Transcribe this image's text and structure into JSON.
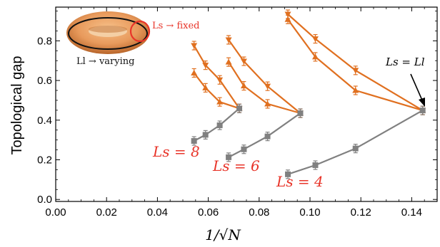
{
  "chart_data": {
    "type": "line",
    "xlabel": "1/√N",
    "ylabel": "Topological gap",
    "xlim": [
      0.0,
      0.15
    ],
    "ylim": [
      -0.01,
      0.97
    ],
    "xticks": [
      "0.00",
      "0.02",
      "0.04",
      "0.06",
      "0.08",
      "0.10",
      "0.12",
      "0.14"
    ],
    "yticks": [
      "0.0",
      "0.2",
      "0.4",
      "0.6",
      "0.8"
    ],
    "colors": {
      "orange": "#e07020",
      "gray": "#808080",
      "red": "#e8352a"
    },
    "series": [
      {
        "color": "orange",
        "marker": "down-triangle",
        "x": [
          0.0544,
          0.0589,
          0.0645,
          0.0722
        ],
        "y": [
          0.776,
          0.677,
          0.603,
          0.459
        ]
      },
      {
        "color": "orange",
        "marker": "up-triangle",
        "x": [
          0.0544,
          0.0589,
          0.0645,
          0.0722
        ],
        "y": [
          0.638,
          0.563,
          0.492,
          0.459
        ]
      },
      {
        "color": "gray",
        "marker": "square",
        "x": [
          0.0544,
          0.0589,
          0.0645,
          0.0722
        ],
        "y": [
          0.295,
          0.326,
          0.374,
          0.459
        ]
      },
      {
        "color": "orange",
        "marker": "down-triangle",
        "x": [
          0.068,
          0.074,
          0.0833,
          0.0962
        ],
        "y": [
          0.805,
          0.697,
          0.571,
          0.435
        ]
      },
      {
        "color": "orange",
        "marker": "up-triangle",
        "x": [
          0.068,
          0.074,
          0.0833,
          0.0962
        ],
        "y": [
          0.693,
          0.573,
          0.482,
          0.435
        ]
      },
      {
        "color": "gray",
        "marker": "square",
        "x": [
          0.068,
          0.074,
          0.0833,
          0.0962
        ],
        "y": [
          0.213,
          0.253,
          0.318,
          0.435
        ]
      },
      {
        "color": "orange",
        "marker": "down-triangle",
        "x": [
          0.0913,
          0.1021,
          0.1179,
          0.1443
        ],
        "y": [
          0.934,
          0.81,
          0.651,
          0.449
        ]
      },
      {
        "color": "orange",
        "marker": "up-triangle",
        "x": [
          0.0913,
          0.1021,
          0.1179,
          0.1443
        ],
        "y": [
          0.908,
          0.719,
          0.55,
          0.449
        ]
      },
      {
        "color": "gray",
        "marker": "square",
        "x": [
          0.0913,
          0.1021,
          0.1179,
          0.1443
        ],
        "y": [
          0.127,
          0.173,
          0.257,
          0.449
        ]
      }
    ],
    "annotations": [
      {
        "text": "L_s = 8",
        "math": "Ls = 8",
        "at": [
          0.048,
          0.215
        ]
      },
      {
        "text": "L_s = 6",
        "math": "Ls = 6",
        "at": [
          0.072,
          0.125
        ]
      },
      {
        "text": "L_s = 4",
        "math": "Ls = 4",
        "at": [
          0.096,
          0.045
        ]
      },
      {
        "text": "L_s = L_l",
        "math": "Ls = Ll",
        "at": [
          0.141,
          0.645
        ]
      }
    ],
    "inset": {
      "label_fixed": "Ls → fixed",
      "label_varying": "Ll → varying"
    }
  }
}
